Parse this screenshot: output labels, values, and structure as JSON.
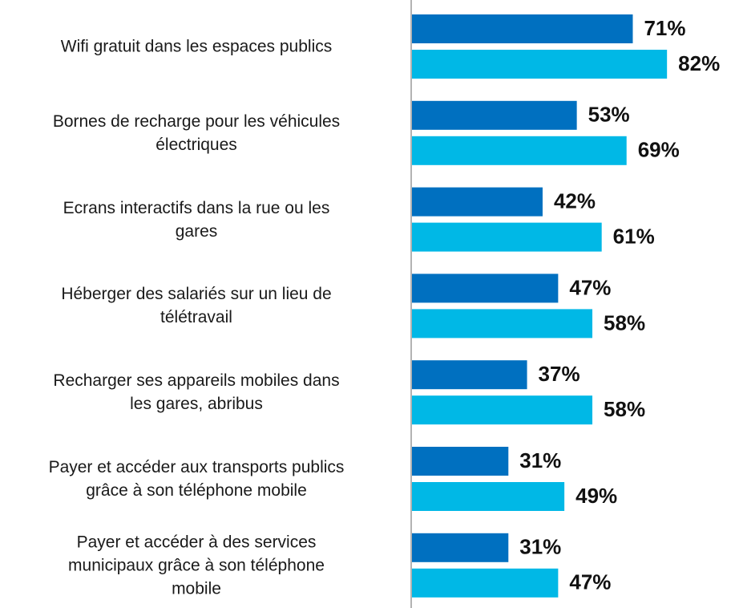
{
  "chart_data": {
    "type": "bar",
    "orientation": "horizontal",
    "categories": [
      "Wifi gratuit dans les espaces publics",
      "Bornes de recharge pour les véhicules\nélectriques",
      "Ecrans interactifs dans la rue ou les\ngares",
      "Héberger des salariés sur un lieu de\ntélétravail",
      "Recharger ses appareils mobiles dans\nles gares, abribus",
      "Payer et accéder aux transports publics\ngrâce à son téléphone mobile",
      "Payer et accéder à des services\nmunicipaux grâce à son téléphone\nmobile"
    ],
    "series": [
      {
        "color": "#0070c0",
        "values": [
          71,
          53,
          42,
          47,
          37,
          31,
          31
        ],
        "value_labels": [
          "71%",
          "53%",
          "42%",
          "47%",
          "37%",
          "31%",
          "31%"
        ]
      },
      {
        "color": "#00b8e6",
        "values": [
          82,
          69,
          61,
          58,
          58,
          49,
          47
        ],
        "value_labels": [
          "82%",
          "69%",
          "61%",
          "58%",
          "58%",
          "49%",
          "47%"
        ]
      }
    ]
  }
}
